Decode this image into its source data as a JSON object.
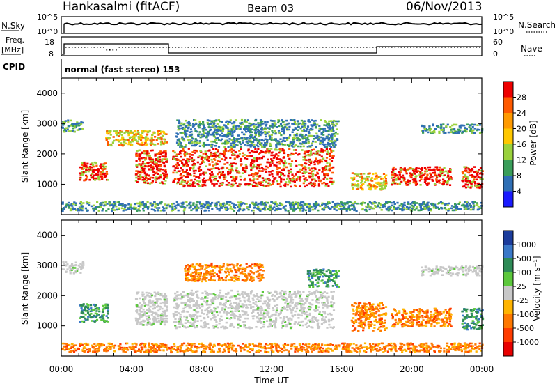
{
  "header": {
    "station": "Hankasalmi (fitACF)",
    "beam": "Beam 03",
    "date": "06/Nov/2013"
  },
  "noise_panel": {
    "left_label": "N.Sky",
    "left_ticks": [
      "10^5",
      "10^0"
    ],
    "right_label": "N.Search",
    "right_ticks": [
      "10^5",
      "10^0"
    ]
  },
  "freq_panel": {
    "left_label_1": "Freq.",
    "left_label_2": "[MHz]",
    "left_ticks": [
      "18",
      "8"
    ],
    "right_label": "Nave",
    "right_ticks": [
      "60",
      "0"
    ]
  },
  "cpid": {
    "label": "CPID",
    "text": "normal (fast stereo) 153"
  },
  "colors": {
    "frame": "#000000",
    "background": "#ffffff"
  },
  "chart_data": [
    {
      "type": "heatmap",
      "title": "",
      "xlabel": "",
      "ylabel": "Slant Range [km]",
      "xlim": [
        0,
        24
      ],
      "ylim": [
        0,
        4500
      ],
      "yticks": [
        "1000",
        "2000",
        "3000",
        "4000"
      ],
      "colorbar": {
        "label": "Power [dB]",
        "ticks": [
          "28",
          "24",
          "20",
          "16",
          "12",
          "8",
          "4"
        ],
        "colors": [
          "#ee0000",
          "#ff5a00",
          "#ff9a00",
          "#ffc800",
          "#9ad23c",
          "#3a9e5a",
          "#2f6fb5",
          "#1a1aff"
        ]
      },
      "echo_regions": [
        {
          "t0": 0.0,
          "t1": 1.2,
          "r0": 2750,
          "r1": 3150,
          "level": "weak"
        },
        {
          "t0": 1.0,
          "t1": 2.6,
          "r0": 1150,
          "r1": 1750,
          "level": "strong"
        },
        {
          "t0": 2.5,
          "t1": 6.0,
          "r0": 2300,
          "r1": 2800,
          "level": "medium"
        },
        {
          "t0": 4.2,
          "t1": 6.0,
          "r0": 1050,
          "r1": 2150,
          "level": "strong"
        },
        {
          "t0": 6.3,
          "t1": 15.5,
          "r0": 950,
          "r1": 2200,
          "level": "strong"
        },
        {
          "t0": 6.5,
          "t1": 15.8,
          "r0": 2250,
          "r1": 3150,
          "level": "weak"
        },
        {
          "t0": 16.5,
          "t1": 18.5,
          "r0": 850,
          "r1": 1400,
          "level": "medium"
        },
        {
          "t0": 18.8,
          "t1": 22.2,
          "r0": 1000,
          "r1": 1600,
          "level": "strong"
        },
        {
          "t0": 22.8,
          "t1": 24.0,
          "r0": 900,
          "r1": 1600,
          "level": "strong"
        },
        {
          "t0": 20.5,
          "t1": 24.0,
          "r0": 2700,
          "r1": 3000,
          "level": "weak"
        },
        {
          "t0": 0.0,
          "t1": 24.0,
          "r0": 150,
          "r1": 450,
          "level": "weak"
        }
      ]
    },
    {
      "type": "heatmap",
      "title": "",
      "xlabel": "Time UT",
      "ylabel": "Slant Range [km]",
      "xlim": [
        0,
        24
      ],
      "ylim": [
        0,
        4500
      ],
      "yticks": [
        "1000",
        "2000",
        "3000",
        "4000"
      ],
      "xticks": [
        "00:00",
        "04:00",
        "08:00",
        "12:00",
        "16:00",
        "20:00",
        "00:00"
      ],
      "colorbar": {
        "label": "Velocity [m s⁻¹]",
        "ticks": [
          "1000",
          "500",
          "100",
          "25",
          "-25",
          "-100",
          "-500",
          "-1000"
        ],
        "colors": [
          "#1c3c9c",
          "#3a78c8",
          "#2e8b57",
          "#5cc83c",
          "#c8c8c8",
          "#ffb400",
          "#ff7800",
          "#ff3c00",
          "#e80000"
        ]
      },
      "echo_regions": [
        {
          "t0": 0.0,
          "t1": 1.2,
          "r0": 2750,
          "r1": 3150,
          "level": "near-zero"
        },
        {
          "t0": 1.0,
          "t1": 2.6,
          "r0": 1150,
          "r1": 1750,
          "level": "positive"
        },
        {
          "t0": 4.2,
          "t1": 6.0,
          "r0": 1050,
          "r1": 2150,
          "level": "near-zero"
        },
        {
          "t0": 6.3,
          "t1": 15.5,
          "r0": 950,
          "r1": 2200,
          "level": "near-zero"
        },
        {
          "t0": 7.0,
          "t1": 11.5,
          "r0": 2500,
          "r1": 3100,
          "level": "negative"
        },
        {
          "t0": 14.0,
          "t1": 15.8,
          "r0": 2300,
          "r1": 2900,
          "level": "positive"
        },
        {
          "t0": 16.5,
          "t1": 18.5,
          "r0": 850,
          "r1": 1800,
          "level": "negative"
        },
        {
          "t0": 18.8,
          "t1": 22.2,
          "r0": 1000,
          "r1": 1600,
          "level": "negative"
        },
        {
          "t0": 22.8,
          "t1": 24.0,
          "r0": 900,
          "r1": 1600,
          "level": "positive"
        },
        {
          "t0": 20.5,
          "t1": 24.0,
          "r0": 2700,
          "r1": 3000,
          "level": "near-zero"
        },
        {
          "t0": 0.0,
          "t1": 24.0,
          "r0": 150,
          "r1": 450,
          "level": "negative"
        }
      ]
    }
  ]
}
